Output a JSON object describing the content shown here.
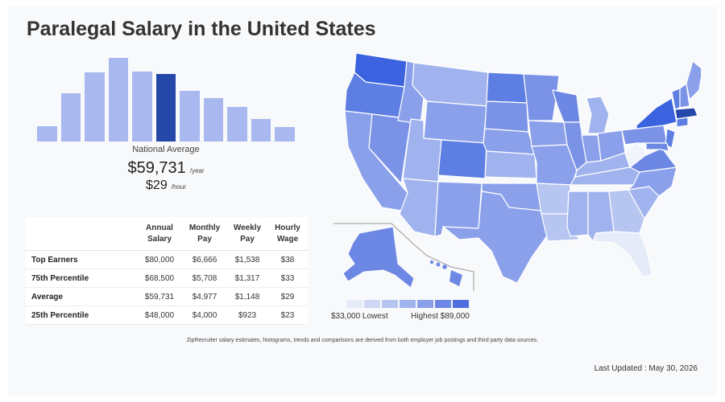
{
  "title": "Paralegal Salary in the United States",
  "histogram": {
    "bars": [
      18,
      57,
      81,
      98,
      82,
      79,
      59,
      51,
      41,
      26,
      17
    ],
    "active_index": 5,
    "max": 100,
    "colors": {
      "bar": "#a9b9ef",
      "active": "#2447a8"
    }
  },
  "national_average": {
    "label": "National Average",
    "yearly": "$59,731",
    "yearly_unit": "/year",
    "hourly": "$29",
    "hourly_unit": "/hour"
  },
  "table": {
    "headers": [
      "Annual Salary",
      "Monthly Pay",
      "Weekly Pay",
      "Hourly Wage"
    ],
    "rows": [
      {
        "label": "Top Earners",
        "values": [
          "$80,000",
          "$6,666",
          "$1,538",
          "$38"
        ]
      },
      {
        "label": "75th Percentile",
        "values": [
          "$68,500",
          "$5,708",
          "$1,317",
          "$33"
        ]
      },
      {
        "label": "Average",
        "values": [
          "$59,731",
          "$4,977",
          "$1,148",
          "$29"
        ]
      },
      {
        "label": "25th Percentile",
        "values": [
          "$48,000",
          "$4,000",
          "$923",
          "$23"
        ]
      }
    ]
  },
  "legend": {
    "low_label": "$33,000 Lowest",
    "high_label": "Highest $89,000",
    "colors": [
      "#e6ebf9",
      "#cdd6f4",
      "#b7c5f1",
      "#a1b3ee",
      "#8aa0ea",
      "#6d88e4",
      "#4f6fdf"
    ]
  },
  "footnote": "ZipRecruiter salary estimates, histograms, trends and comparisons are derived from both employer job postings and third party data sources.",
  "last_updated": "Last Updated : May 30, 2026"
}
